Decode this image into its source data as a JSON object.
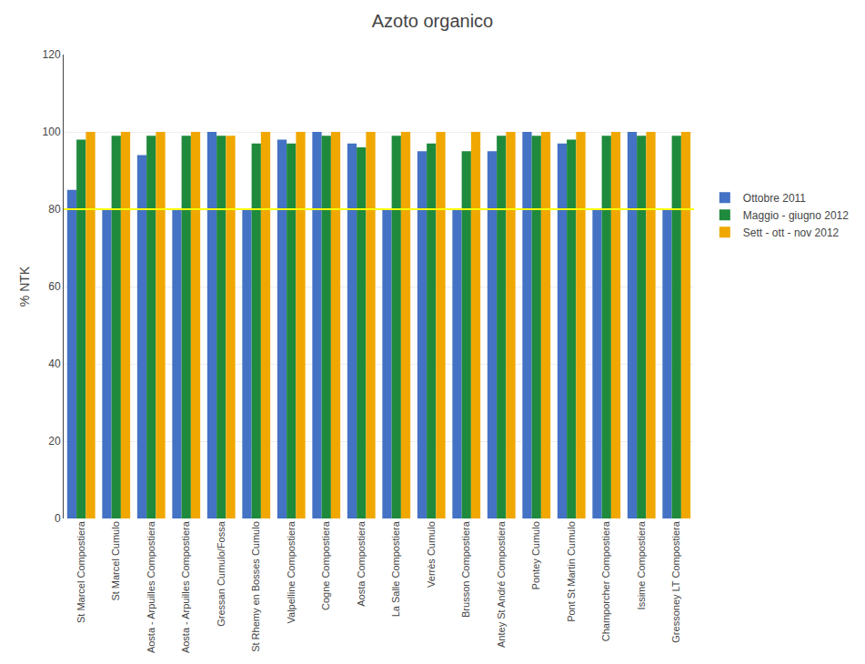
{
  "chart_data": {
    "type": "bar",
    "title": "Azoto organico",
    "ylabel": "% NTK",
    "categories": [
      "St Marcel Compostiera",
      "St Marcel Cumulo",
      "Aosta - Arpuilles Compostiera",
      "Aosta - Arpuilles Compostiera",
      "Gressan Cumulo/Fossa",
      "St Rhemy en Bosses Cumulo",
      "Valpelline Compostiera",
      "Cogne Compostiera",
      "Aosta Compostiera",
      "La Salle Compostiera",
      "Verrès Cumulo",
      "Brusson Compostiera",
      "Antey St André Compostiera",
      "Pontey Cumulo",
      "Pont St Martin Cumulo",
      "Champorcher Compostiera",
      "Issime Compostiera",
      "Gressoney LT Compostiera"
    ],
    "series": [
      {
        "name": "Ottobre 2011",
        "color": "#4472C4",
        "values": [
          85,
          80,
          94,
          80,
          100,
          80,
          98,
          100,
          97,
          80,
          95,
          80,
          95,
          100,
          97,
          80,
          100,
          80
        ]
      },
      {
        "name": "Maggio - giugno 2012",
        "color": "#1F8A3C",
        "values": [
          98,
          99,
          99,
          99,
          99,
          97,
          97,
          99,
          96,
          99,
          97,
          95,
          99,
          99,
          98,
          99,
          99,
          99
        ]
      },
      {
        "name": "Sett - ott - nov 2012",
        "color": "#F0A800",
        "values": [
          100,
          100,
          100,
          100,
          99,
          100,
          100,
          100,
          100,
          100,
          100,
          100,
          100,
          100,
          100,
          100,
          100,
          100
        ]
      }
    ],
    "hline": {
      "y": 80,
      "color": "#FFFF00"
    },
    "ylim": [
      0,
      120
    ],
    "yticks": [
      0,
      20,
      40,
      60,
      80,
      100,
      120
    ],
    "grid": true,
    "legend": "right"
  }
}
